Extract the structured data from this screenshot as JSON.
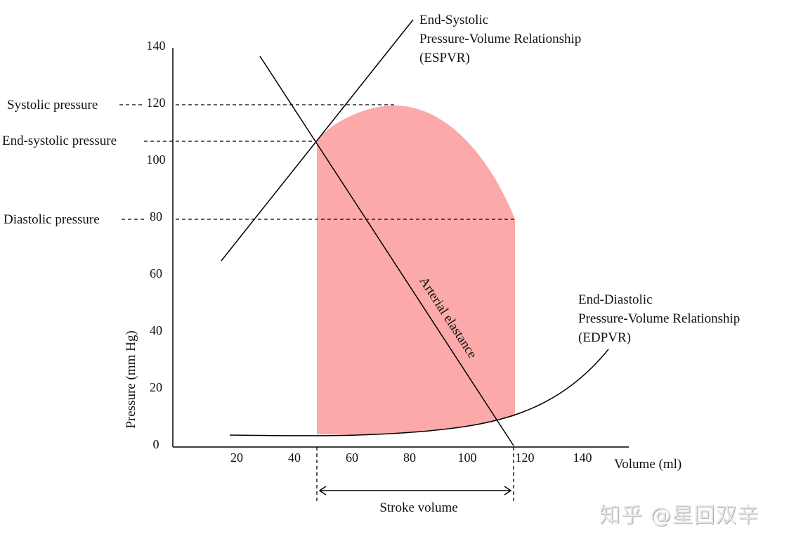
{
  "axes": {
    "y_label": "Pressure (mm Hg)",
    "x_label": "Volume (ml)",
    "y_ticks": [
      "0",
      "20",
      "40",
      "60",
      "80",
      "100",
      "120",
      "140"
    ],
    "x_ticks": [
      "20",
      "40",
      "60",
      "80",
      "100",
      "120",
      "140"
    ]
  },
  "labels": {
    "systolic_pressure": "Systolic pressure",
    "end_systolic_pressure": "End-systolic pressure",
    "diastolic_pressure": "Diastolic pressure",
    "espvr": [
      "End-Systolic",
      "Pressure-Volume Relationship",
      "(ESPVR)"
    ],
    "edpvr": [
      "End-Diastolic",
      "Pressure-Volume Relationship",
      "(EDPVR)"
    ],
    "arterial_elastance": "Arterial elastance",
    "stroke_volume": "Stroke volume"
  },
  "colors": {
    "loop_fill": "#fba9a9",
    "line": "#000000"
  },
  "watermark": "知乎 @星回双辛"
}
